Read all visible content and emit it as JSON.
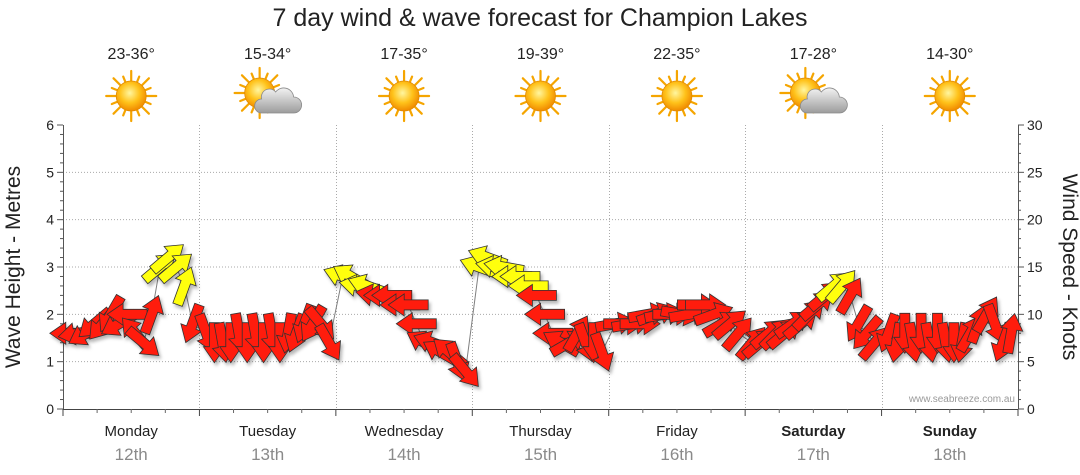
{
  "title": "7 day wind & wave forecast for Champion Lakes",
  "watermark": "www.seabreeze.com.au",
  "colors": {
    "wind_strong": "#ff1a0a",
    "wind_light": "#ffff10",
    "stroke": "#333333",
    "wave_line": "#808080",
    "grid": "#aaaaaa"
  },
  "days": [
    {
      "name": "Monday",
      "date": "12th",
      "temp": "23-36°",
      "icon": "sun-icon",
      "bold": false
    },
    {
      "name": "Tuesday",
      "date": "13th",
      "temp": "15-34°",
      "icon": "sun-cloud-icon",
      "bold": false
    },
    {
      "name": "Wednesday",
      "date": "14th",
      "temp": "17-35°",
      "icon": "sun-icon",
      "bold": false
    },
    {
      "name": "Thursday",
      "date": "15th",
      "temp": "19-39°",
      "icon": "sun-icon",
      "bold": false
    },
    {
      "name": "Friday",
      "date": "16th",
      "temp": "22-35°",
      "icon": "sun-icon",
      "bold": false
    },
    {
      "name": "Saturday",
      "date": "17th",
      "temp": "17-28°",
      "icon": "sun-cloud-icon",
      "bold": true
    },
    {
      "name": "Sunday",
      "date": "18th",
      "temp": "14-30°",
      "icon": "sun-icon",
      "bold": true
    }
  ],
  "chart_data": {
    "type": "line",
    "title": "7 day wind & wave forecast for Champion Lakes",
    "ylabel_left": "Wave Height - Metres",
    "ylabel_right": "Wind Speed - Knots",
    "ylim_left": [
      0,
      6
    ],
    "ylim_right": [
      0,
      30
    ],
    "yticks_left": [
      0,
      1,
      2,
      3,
      4,
      5,
      6
    ],
    "yticks_right": [
      0,
      5,
      10,
      15,
      20,
      25,
      30
    ],
    "x_unit": "day index (0 = Monday 12th)",
    "legend": "none",
    "grid": true,
    "series": [
      {
        "name": "Wind speed (knots) with direction arrows",
        "points": [
          {
            "t": 0.05,
            "knots": 8,
            "dir_to": 270
          },
          {
            "t": 0.11,
            "knots": 8,
            "dir_to": 260
          },
          {
            "t": 0.17,
            "knots": 8,
            "dir_to": 240
          },
          {
            "t": 0.23,
            "knots": 9,
            "dir_to": 230
          },
          {
            "t": 0.29,
            "knots": 9,
            "dir_to": 220
          },
          {
            "t": 0.35,
            "knots": 10,
            "dir_to": 210
          },
          {
            "t": 0.41,
            "knots": 9,
            "dir_to": 240
          },
          {
            "t": 0.47,
            "knots": 10,
            "dir_to": 270
          },
          {
            "t": 0.53,
            "knots": 8,
            "dir_to": 320
          },
          {
            "t": 0.59,
            "knots": 7,
            "dir_to": 130
          },
          {
            "t": 0.65,
            "knots": 10,
            "dir_to": 20
          },
          {
            "t": 0.71,
            "knots": 15,
            "dir_to": 50
          },
          {
            "t": 0.77,
            "knots": 16,
            "dir_to": 50
          },
          {
            "t": 0.83,
            "knots": 15,
            "dir_to": 50
          },
          {
            "t": 0.89,
            "knots": 13,
            "dir_to": 20
          },
          {
            "t": 0.95,
            "knots": 9,
            "dir_to": 200
          },
          {
            "t": 1.05,
            "knots": 8,
            "dir_to": 160
          },
          {
            "t": 1.11,
            "knots": 7,
            "dir_to": 180
          },
          {
            "t": 1.17,
            "knots": 7,
            "dir_to": 170
          },
          {
            "t": 1.23,
            "knots": 7,
            "dir_to": 180
          },
          {
            "t": 1.29,
            "knots": 8,
            "dir_to": 170
          },
          {
            "t": 1.35,
            "knots": 7,
            "dir_to": 180
          },
          {
            "t": 1.41,
            "knots": 8,
            "dir_to": 170
          },
          {
            "t": 1.47,
            "knots": 7,
            "dir_to": 180
          },
          {
            "t": 1.53,
            "knots": 8,
            "dir_to": 170
          },
          {
            "t": 1.59,
            "knots": 7,
            "dir_to": 180
          },
          {
            "t": 1.65,
            "knots": 8,
            "dir_to": 190
          },
          {
            "t": 1.71,
            "knots": 8,
            "dir_to": 200
          },
          {
            "t": 1.77,
            "knots": 9,
            "dir_to": 200
          },
          {
            "t": 1.83,
            "knots": 9,
            "dir_to": 210
          },
          {
            "t": 1.89,
            "knots": 9,
            "dir_to": 140
          },
          {
            "t": 1.95,
            "knots": 7,
            "dir_to": 150
          },
          {
            "t": 2.05,
            "knots": 14,
            "dir_to": 290
          },
          {
            "t": 2.11,
            "knots": 14,
            "dir_to": 300
          },
          {
            "t": 2.17,
            "knots": 13,
            "dir_to": 280
          },
          {
            "t": 2.23,
            "knots": 13,
            "dir_to": 290
          },
          {
            "t": 2.29,
            "knots": 12,
            "dir_to": 280
          },
          {
            "t": 2.35,
            "knots": 12,
            "dir_to": 270
          },
          {
            "t": 2.41,
            "knots": 12,
            "dir_to": 270
          },
          {
            "t": 2.47,
            "knots": 11,
            "dir_to": 270
          },
          {
            "t": 2.53,
            "knots": 11,
            "dir_to": 270
          },
          {
            "t": 2.59,
            "knots": 9,
            "dir_to": 270
          },
          {
            "t": 2.65,
            "knots": 7,
            "dir_to": 300
          },
          {
            "t": 2.71,
            "knots": 7,
            "dir_to": 290
          },
          {
            "t": 2.77,
            "knots": 6,
            "dir_to": 300
          },
          {
            "t": 2.83,
            "knots": 6,
            "dir_to": 310
          },
          {
            "t": 2.89,
            "knots": 5,
            "dir_to": 160
          },
          {
            "t": 2.95,
            "knots": 4,
            "dir_to": 140
          },
          {
            "t": 3.05,
            "knots": 15,
            "dir_to": 290
          },
          {
            "t": 3.11,
            "knots": 16,
            "dir_to": 290
          },
          {
            "t": 3.17,
            "knots": 15,
            "dir_to": 280
          },
          {
            "t": 3.23,
            "knots": 15,
            "dir_to": 280
          },
          {
            "t": 3.29,
            "knots": 14,
            "dir_to": 270
          },
          {
            "t": 3.35,
            "knots": 14,
            "dir_to": 270
          },
          {
            "t": 3.41,
            "knots": 13,
            "dir_to": 270
          },
          {
            "t": 3.47,
            "knots": 12,
            "dir_to": 270
          },
          {
            "t": 3.53,
            "knots": 10,
            "dir_to": 270
          },
          {
            "t": 3.59,
            "knots": 8,
            "dir_to": 270
          },
          {
            "t": 3.65,
            "knots": 7,
            "dir_to": 300
          },
          {
            "t": 3.71,
            "knots": 7,
            "dir_to": 60
          },
          {
            "t": 3.77,
            "knots": 8,
            "dir_to": 30
          },
          {
            "t": 3.83,
            "knots": 7,
            "dir_to": 160
          },
          {
            "t": 3.89,
            "knots": 7,
            "dir_to": 180
          },
          {
            "t": 3.95,
            "knots": 6,
            "dir_to": 160
          },
          {
            "t": 4.05,
            "knots": 9,
            "dir_to": 80
          },
          {
            "t": 4.11,
            "knots": 9,
            "dir_to": 90
          },
          {
            "t": 4.17,
            "knots": 9,
            "dir_to": 80
          },
          {
            "t": 4.23,
            "knots": 9,
            "dir_to": 90
          },
          {
            "t": 4.29,
            "knots": 10,
            "dir_to": 80
          },
          {
            "t": 4.35,
            "knots": 10,
            "dir_to": 70
          },
          {
            "t": 4.41,
            "knots": 10,
            "dir_to": 80
          },
          {
            "t": 4.47,
            "knots": 10,
            "dir_to": 90
          },
          {
            "t": 4.53,
            "knots": 10,
            "dir_to": 100
          },
          {
            "t": 4.59,
            "knots": 10,
            "dir_to": 80
          },
          {
            "t": 4.65,
            "knots": 11,
            "dir_to": 90
          },
          {
            "t": 4.71,
            "knots": 11,
            "dir_to": 90
          },
          {
            "t": 4.77,
            "knots": 10,
            "dir_to": 70
          },
          {
            "t": 4.83,
            "knots": 9,
            "dir_to": 60
          },
          {
            "t": 4.89,
            "knots": 9,
            "dir_to": 50
          },
          {
            "t": 4.95,
            "knots": 8,
            "dir_to": 40
          },
          {
            "t": 5.05,
            "knots": 7,
            "dir_to": 40
          },
          {
            "t": 5.11,
            "knots": 7,
            "dir_to": 50
          },
          {
            "t": 5.17,
            "knots": 8,
            "dir_to": 50
          },
          {
            "t": 5.23,
            "knots": 8,
            "dir_to": 45
          },
          {
            "t": 5.29,
            "knots": 8,
            "dir_to": 50
          },
          {
            "t": 5.35,
            "knots": 9,
            "dir_to": 55
          },
          {
            "t": 5.41,
            "knots": 9,
            "dir_to": 50
          },
          {
            "t": 5.47,
            "knots": 10,
            "dir_to": 45
          },
          {
            "t": 5.53,
            "knots": 11,
            "dir_to": 50
          },
          {
            "t": 5.59,
            "knots": 12,
            "dir_to": 50
          },
          {
            "t": 5.65,
            "knots": 13,
            "dir_to": 50
          },
          {
            "t": 5.71,
            "knots": 13,
            "dir_to": 40
          },
          {
            "t": 5.77,
            "knots": 12,
            "dir_to": 30
          },
          {
            "t": 5.83,
            "knots": 9,
            "dir_to": 210
          },
          {
            "t": 5.89,
            "knots": 8,
            "dir_to": 220
          },
          {
            "t": 5.95,
            "knots": 7,
            "dir_to": 40
          },
          {
            "t": 6.05,
            "knots": 8,
            "dir_to": 200
          },
          {
            "t": 6.11,
            "knots": 7,
            "dir_to": 190
          },
          {
            "t": 6.17,
            "knots": 8,
            "dir_to": 180
          },
          {
            "t": 6.23,
            "knots": 7,
            "dir_to": 170
          },
          {
            "t": 6.29,
            "knots": 8,
            "dir_to": 180
          },
          {
            "t": 6.35,
            "knots": 7,
            "dir_to": 170
          },
          {
            "t": 6.41,
            "knots": 8,
            "dir_to": 180
          },
          {
            "t": 6.47,
            "knots": 7,
            "dir_to": 170
          },
          {
            "t": 6.53,
            "knots": 7,
            "dir_to": 180
          },
          {
            "t": 6.59,
            "knots": 7,
            "dir_to": 190
          },
          {
            "t": 6.65,
            "knots": 8,
            "dir_to": 30
          },
          {
            "t": 6.71,
            "knots": 9,
            "dir_to": 20
          },
          {
            "t": 6.77,
            "knots": 10,
            "dir_to": 30
          },
          {
            "t": 6.83,
            "knots": 9,
            "dir_to": 160
          },
          {
            "t": 6.89,
            "knots": 7,
            "dir_to": 200
          },
          {
            "t": 6.95,
            "knots": 8,
            "dir_to": 10
          }
        ]
      }
    ]
  }
}
